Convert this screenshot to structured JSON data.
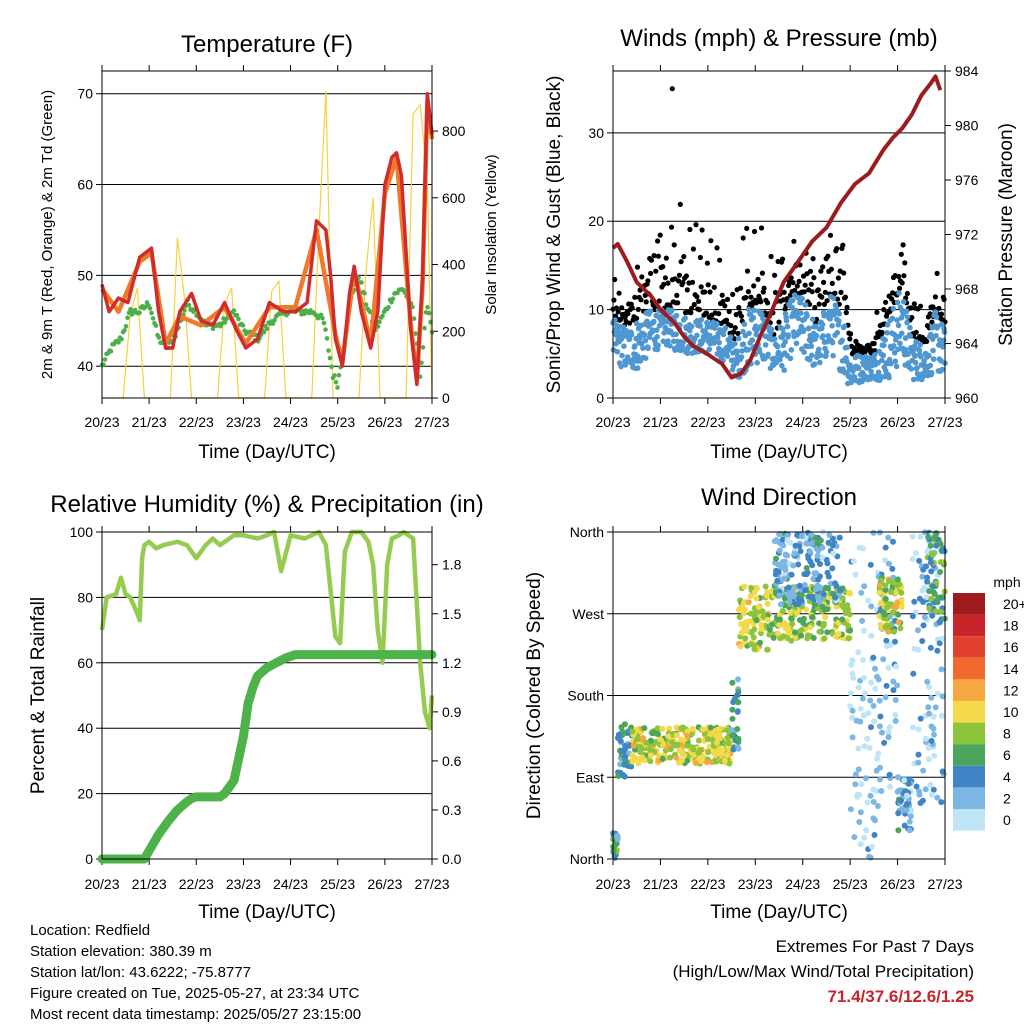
{
  "chart_data": [
    {
      "type": "line",
      "title": "Temperature (F)",
      "xlabel": "Time (Day/UTC)",
      "ylabel": "2m & 9m T (Red, Orange) & 2m Td (Green)",
      "ylabel_right": "Solar Insolation (Yellow)",
      "x_ticks": [
        "20/23",
        "21/23",
        "22/23",
        "23/23",
        "24/23",
        "25/23",
        "26/23",
        "27/23"
      ],
      "ylim": [
        36.5,
        72.5
      ],
      "y_ticks": [
        40,
        50,
        60,
        70
      ],
      "y2lim": [
        0,
        980
      ],
      "y2_ticks": [
        0,
        200,
        400,
        600,
        800
      ],
      "grid": "horizontal at left ticks",
      "series": [
        {
          "name": "2m T",
          "color": "#d22b2b",
          "axis": "left",
          "x": [
            0,
            0.15,
            0.35,
            0.55,
            0.8,
            1.05,
            1.2,
            1.35,
            1.5,
            1.65,
            1.9,
            2.1,
            2.35,
            2.6,
            2.85,
            3.05,
            3.3,
            3.55,
            3.85,
            4.1,
            4.35,
            4.55,
            4.75,
            4.85,
            4.95,
            5.1,
            5.25,
            5.35,
            5.5,
            5.7,
            5.85,
            6.0,
            6.15,
            6.25,
            6.35,
            6.55,
            6.68,
            6.8,
            6.9,
            7.0
          ],
          "values": [
            49,
            46,
            47.5,
            47,
            52,
            53,
            46,
            42,
            42,
            46,
            48,
            45,
            44.5,
            47,
            44,
            42,
            43,
            47,
            46,
            46,
            47,
            56,
            55,
            50,
            43,
            40,
            48,
            51,
            46,
            42,
            46,
            60,
            63,
            63.5,
            61,
            44,
            38,
            50,
            70,
            65.5
          ]
        },
        {
          "name": "9m T",
          "color": "#f07a2a",
          "axis": "left",
          "x": [
            0,
            0.35,
            0.8,
            1.05,
            1.35,
            1.65,
            2.1,
            2.6,
            3.05,
            3.55,
            4.1,
            4.55,
            4.95,
            5.1,
            5.35,
            5.7,
            6.0,
            6.25,
            6.55,
            6.68,
            6.8,
            6.9,
            7.0
          ],
          "values": [
            48.5,
            46,
            51.5,
            52.5,
            42.5,
            45.5,
            44.5,
            46.5,
            42.5,
            46.5,
            46.5,
            55,
            43.5,
            40.5,
            50.5,
            42.5,
            59,
            63,
            44.5,
            38.5,
            49,
            69,
            65
          ]
        },
        {
          "name": "2m Td",
          "color": "#4caf4c",
          "axis": "left",
          "x": [
            0,
            0.2,
            0.4,
            0.6,
            0.8,
            1.0,
            1.2,
            1.4,
            1.6,
            1.8,
            2.0,
            2.2,
            2.5,
            2.8,
            3.0,
            3.3,
            3.6,
            3.9,
            4.2,
            4.5,
            4.7,
            4.9,
            5.0,
            5.15,
            5.3,
            5.45,
            5.6,
            5.8,
            6.0,
            6.2,
            6.4,
            6.6,
            6.75,
            6.9,
            7.0
          ],
          "values": [
            40,
            42,
            43,
            46,
            46,
            47,
            43,
            42,
            44,
            47,
            46,
            44.5,
            44.5,
            46,
            44,
            43,
            45,
            46,
            46,
            46,
            45,
            39,
            38,
            43,
            48,
            50,
            47,
            44,
            46,
            48,
            48.5,
            46,
            39,
            47,
            44
          ]
        },
        {
          "name": "Solar Insolation",
          "color": "#f4d23c",
          "axis": "right",
          "x": [
            0,
            0.45,
            0.6,
            0.75,
            0.9,
            1.45,
            1.6,
            1.75,
            1.9,
            2.45,
            2.6,
            2.75,
            2.9,
            3.45,
            3.6,
            3.75,
            3.9,
            4.45,
            4.6,
            4.75,
            4.9,
            5.45,
            5.6,
            5.75,
            5.9,
            6.45,
            6.6,
            6.75,
            6.9,
            7.0
          ],
          "values": [
            0,
            0,
            250,
            330,
            0,
            0,
            480,
            300,
            0,
            0,
            280,
            330,
            0,
            0,
            320,
            350,
            0,
            0,
            500,
            920,
            0,
            0,
            380,
            600,
            0,
            0,
            850,
            880,
            650,
            0
          ]
        }
      ]
    },
    {
      "type": "scatter",
      "title": "Winds (mph) & Pressure (mb)",
      "xlabel": "Time (Day/UTC)",
      "ylabel": "Sonic/Prop Wind & Gust (Blue, Black)",
      "ylabel_right": "Station Pressure (Maroon)",
      "x_ticks": [
        "20/23",
        "21/23",
        "22/23",
        "23/23",
        "24/23",
        "25/23",
        "26/23",
        "27/23"
      ],
      "ylim": [
        0,
        37
      ],
      "y_ticks": [
        0,
        10,
        20,
        30
      ],
      "y2lim": [
        960,
        984
      ],
      "y2_ticks": [
        960,
        964,
        968,
        972,
        976,
        980,
        984
      ],
      "grid": "horizontal at left ticks",
      "wind_envelope": {
        "x": [
          0,
          0.3,
          0.5,
          0.8,
          1.1,
          1.4,
          1.6,
          2.0,
          2.4,
          2.6,
          2.8,
          3.1,
          3.4,
          3.6,
          3.8,
          4.1,
          4.3,
          4.6,
          4.9,
          5.0,
          5.3,
          5.5,
          5.8,
          6.1,
          6.3,
          6.6,
          6.8,
          7.0
        ],
        "wind_lo": [
          4,
          3,
          3,
          5,
          6,
          5,
          5,
          5,
          4,
          2,
          3,
          4,
          3,
          3,
          5,
          4,
          3,
          5,
          2,
          1,
          2,
          2,
          2,
          4,
          2,
          2,
          3,
          2
        ],
        "wind_hi": [
          9,
          8,
          9,
          10,
          10,
          10,
          9,
          9,
          8,
          6,
          10,
          11,
          7,
          9,
          12,
          11,
          8,
          12,
          9,
          5,
          5,
          5,
          9,
          13,
          7,
          6,
          10,
          8
        ],
        "gust_hi": [
          14,
          12,
          15,
          20,
          25,
          22,
          21,
          20,
          16,
          12,
          21,
          20,
          15,
          17,
          20,
          19,
          15,
          20,
          17,
          8,
          7,
          8,
          16,
          18,
          11,
          10,
          15,
          12
        ]
      },
      "gust_outlier": {
        "x": 1.25,
        "y": 35
      },
      "series": [
        {
          "name": "Station Pressure",
          "color": "#9b1c1f",
          "axis": "right",
          "x": [
            0,
            0.1,
            0.3,
            0.5,
            0.8,
            1.0,
            1.3,
            1.5,
            1.7,
            2.0,
            2.3,
            2.5,
            2.7,
            2.9,
            3.1,
            3.3,
            3.6,
            3.9,
            4.2,
            4.5,
            4.8,
            5.1,
            5.4,
            5.7,
            5.9,
            6.1,
            6.3,
            6.5,
            6.7,
            6.8,
            6.9,
            6.95,
            7.0
          ],
          "values": [
            971,
            971.3,
            970,
            968.5,
            967.5,
            966.5,
            965.5,
            964.5,
            963.8,
            963.2,
            962.5,
            961.5,
            961.8,
            962.8,
            964.5,
            966,
            968.5,
            970,
            971.5,
            972.5,
            974.3,
            975.7,
            976.5,
            978.2,
            979.1,
            979.8,
            980.8,
            982.2,
            983.1,
            983.6,
            982.6,
            null,
            980
          ]
        }
      ]
    },
    {
      "type": "line",
      "title": "Relative Humidity (%) & Precipitation (in)",
      "xlabel": "Time (Day/UTC)",
      "ylabel": "Percent & Total Rainfall",
      "x_ticks": [
        "20/23",
        "21/23",
        "22/23",
        "23/23",
        "24/23",
        "25/23",
        "26/23",
        "27/23"
      ],
      "ylim": [
        0,
        100
      ],
      "y_ticks": [
        0,
        20,
        40,
        60,
        80,
        100
      ],
      "y2lim": [
        0,
        2.0
      ],
      "y2_ticks": [
        "0.0",
        "0.3",
        "0.6",
        "0.9",
        "1.2",
        "1.5",
        "1.8"
      ],
      "grid": "horizontal at left ticks",
      "series": [
        {
          "name": "Relative Humidity",
          "color": "#95cc50",
          "axis": "left",
          "x": [
            0,
            0.1,
            0.3,
            0.4,
            0.5,
            0.6,
            0.75,
            0.8,
            0.85,
            0.9,
            1.0,
            1.15,
            1.3,
            1.6,
            1.8,
            2.0,
            2.2,
            2.35,
            2.5,
            2.8,
            3.0,
            3.3,
            3.5,
            3.65,
            3.8,
            4.0,
            4.3,
            4.6,
            4.75,
            4.85,
            4.95,
            5.05,
            5.15,
            5.3,
            5.5,
            5.65,
            5.75,
            5.85,
            5.95,
            6.05,
            6.15,
            6.3,
            6.4,
            6.5,
            6.6,
            6.65,
            6.75,
            6.85,
            6.95,
            7.0
          ],
          "values": [
            70,
            80,
            81,
            86,
            81,
            80,
            75,
            73,
            92,
            96,
            97,
            95,
            96,
            97,
            96,
            92,
            96,
            98,
            96,
            99,
            99,
            98,
            99,
            100,
            88,
            99,
            98,
            100,
            96,
            82,
            68,
            66,
            94,
            100,
            100,
            97,
            90,
            70,
            60,
            90,
            98,
            99,
            100,
            99,
            98,
            85,
            60,
            45,
            40,
            50
          ]
        },
        {
          "name": "Total Precipitation",
          "color": "#4db24a",
          "axis": "right",
          "x": [
            0,
            0.9,
            1.0,
            1.2,
            1.4,
            1.6,
            1.8,
            1.9,
            2.0,
            2.2,
            2.5,
            2.6,
            2.8,
            3.0,
            3.1,
            3.2,
            3.3,
            3.5,
            3.7,
            3.9,
            4.1,
            4.4,
            5.0,
            6.0,
            7.0
          ],
          "values": [
            0.0,
            0.0,
            0.05,
            0.15,
            0.23,
            0.3,
            0.35,
            0.37,
            0.38,
            0.38,
            0.38,
            0.4,
            0.48,
            0.75,
            0.95,
            1.05,
            1.12,
            1.17,
            1.2,
            1.23,
            1.25,
            1.25,
            1.25,
            1.25,
            1.25
          ]
        }
      ]
    },
    {
      "type": "scatter",
      "title": "Wind Direction",
      "xlabel": "Time (Day/UTC)",
      "ylabel": "Direction (Colored By Speed)",
      "x_ticks": [
        "20/23",
        "21/23",
        "22/23",
        "23/23",
        "24/23",
        "25/23",
        "26/23",
        "27/23"
      ],
      "y_ticks": [
        "North",
        "East",
        "South",
        "West",
        "North"
      ],
      "ylim": [
        0,
        360
      ],
      "grid": "horizontal at direction ticks",
      "colorbar": {
        "title": "mph",
        "labels": [
          "20+",
          "18",
          "16",
          "14",
          "12",
          "10",
          "8",
          "6",
          "4",
          "2",
          "0"
        ],
        "colors": [
          "#9e1b1e",
          "#c8242b",
          "#e2412f",
          "#ef6a2c",
          "#f7a742",
          "#f4d949",
          "#8cc43c",
          "#4ba65c",
          "#3f84c5",
          "#7cb6e3",
          "#bfe4f6"
        ]
      },
      "clusters": [
        {
          "x0": 0.0,
          "x1": 0.1,
          "dir_lo": 0,
          "dir_hi": 30,
          "spd": 5
        },
        {
          "x0": 0.1,
          "x1": 0.4,
          "dir_lo": 90,
          "dir_hi": 150,
          "spd": 4
        },
        {
          "x0": 0.4,
          "x1": 2.5,
          "dir_lo": 105,
          "dir_hi": 145,
          "spd": 9
        },
        {
          "x0": 2.5,
          "x1": 2.65,
          "dir_lo": 120,
          "dir_hi": 200,
          "spd": 4
        },
        {
          "x0": 2.65,
          "x1": 3.3,
          "dir_lo": 230,
          "dir_hi": 300,
          "spd": 9
        },
        {
          "x0": 3.3,
          "x1": 5.0,
          "dir_lo": 240,
          "dir_hi": 300,
          "spd": 8
        },
        {
          "x0": 3.4,
          "x1": 4.8,
          "dir_lo": 280,
          "dir_hi": 360,
          "spd": 3
        },
        {
          "x0": 5.0,
          "x1": 5.6,
          "dir_lo": 0,
          "dir_hi": 360,
          "spd": 1
        },
        {
          "x0": 5.6,
          "x1": 6.0,
          "dir_lo": 60,
          "dir_hi": 360,
          "spd": 2
        },
        {
          "x0": 5.6,
          "x1": 6.1,
          "dir_lo": 250,
          "dir_hi": 310,
          "spd": 9
        },
        {
          "x0": 6.0,
          "x1": 6.3,
          "dir_lo": 30,
          "dir_hi": 90,
          "spd": 3
        },
        {
          "x0": 6.3,
          "x1": 7.0,
          "dir_lo": 60,
          "dir_hi": 360,
          "spd": 2
        },
        {
          "x0": 6.6,
          "x1": 7.0,
          "dir_lo": 260,
          "dir_hi": 360,
          "spd": 6
        }
      ]
    }
  ],
  "info": {
    "location": "Location: Redfield",
    "elevation": "Station elevation: 380.39 m",
    "latlon": "Station lat/lon: 43.6222; -75.8777",
    "created": "Figure created on Tue, 2025-05-27, at 23:34 UTC",
    "recent": "Most recent data timestamp: 2025/05/27 23:15:00"
  },
  "extremes": {
    "line1": "Extremes For Past 7 Days",
    "line2": "(High/Low/Max Wind/Total Precipitation)",
    "values": "71.4/37.6/12.6/1.25"
  }
}
